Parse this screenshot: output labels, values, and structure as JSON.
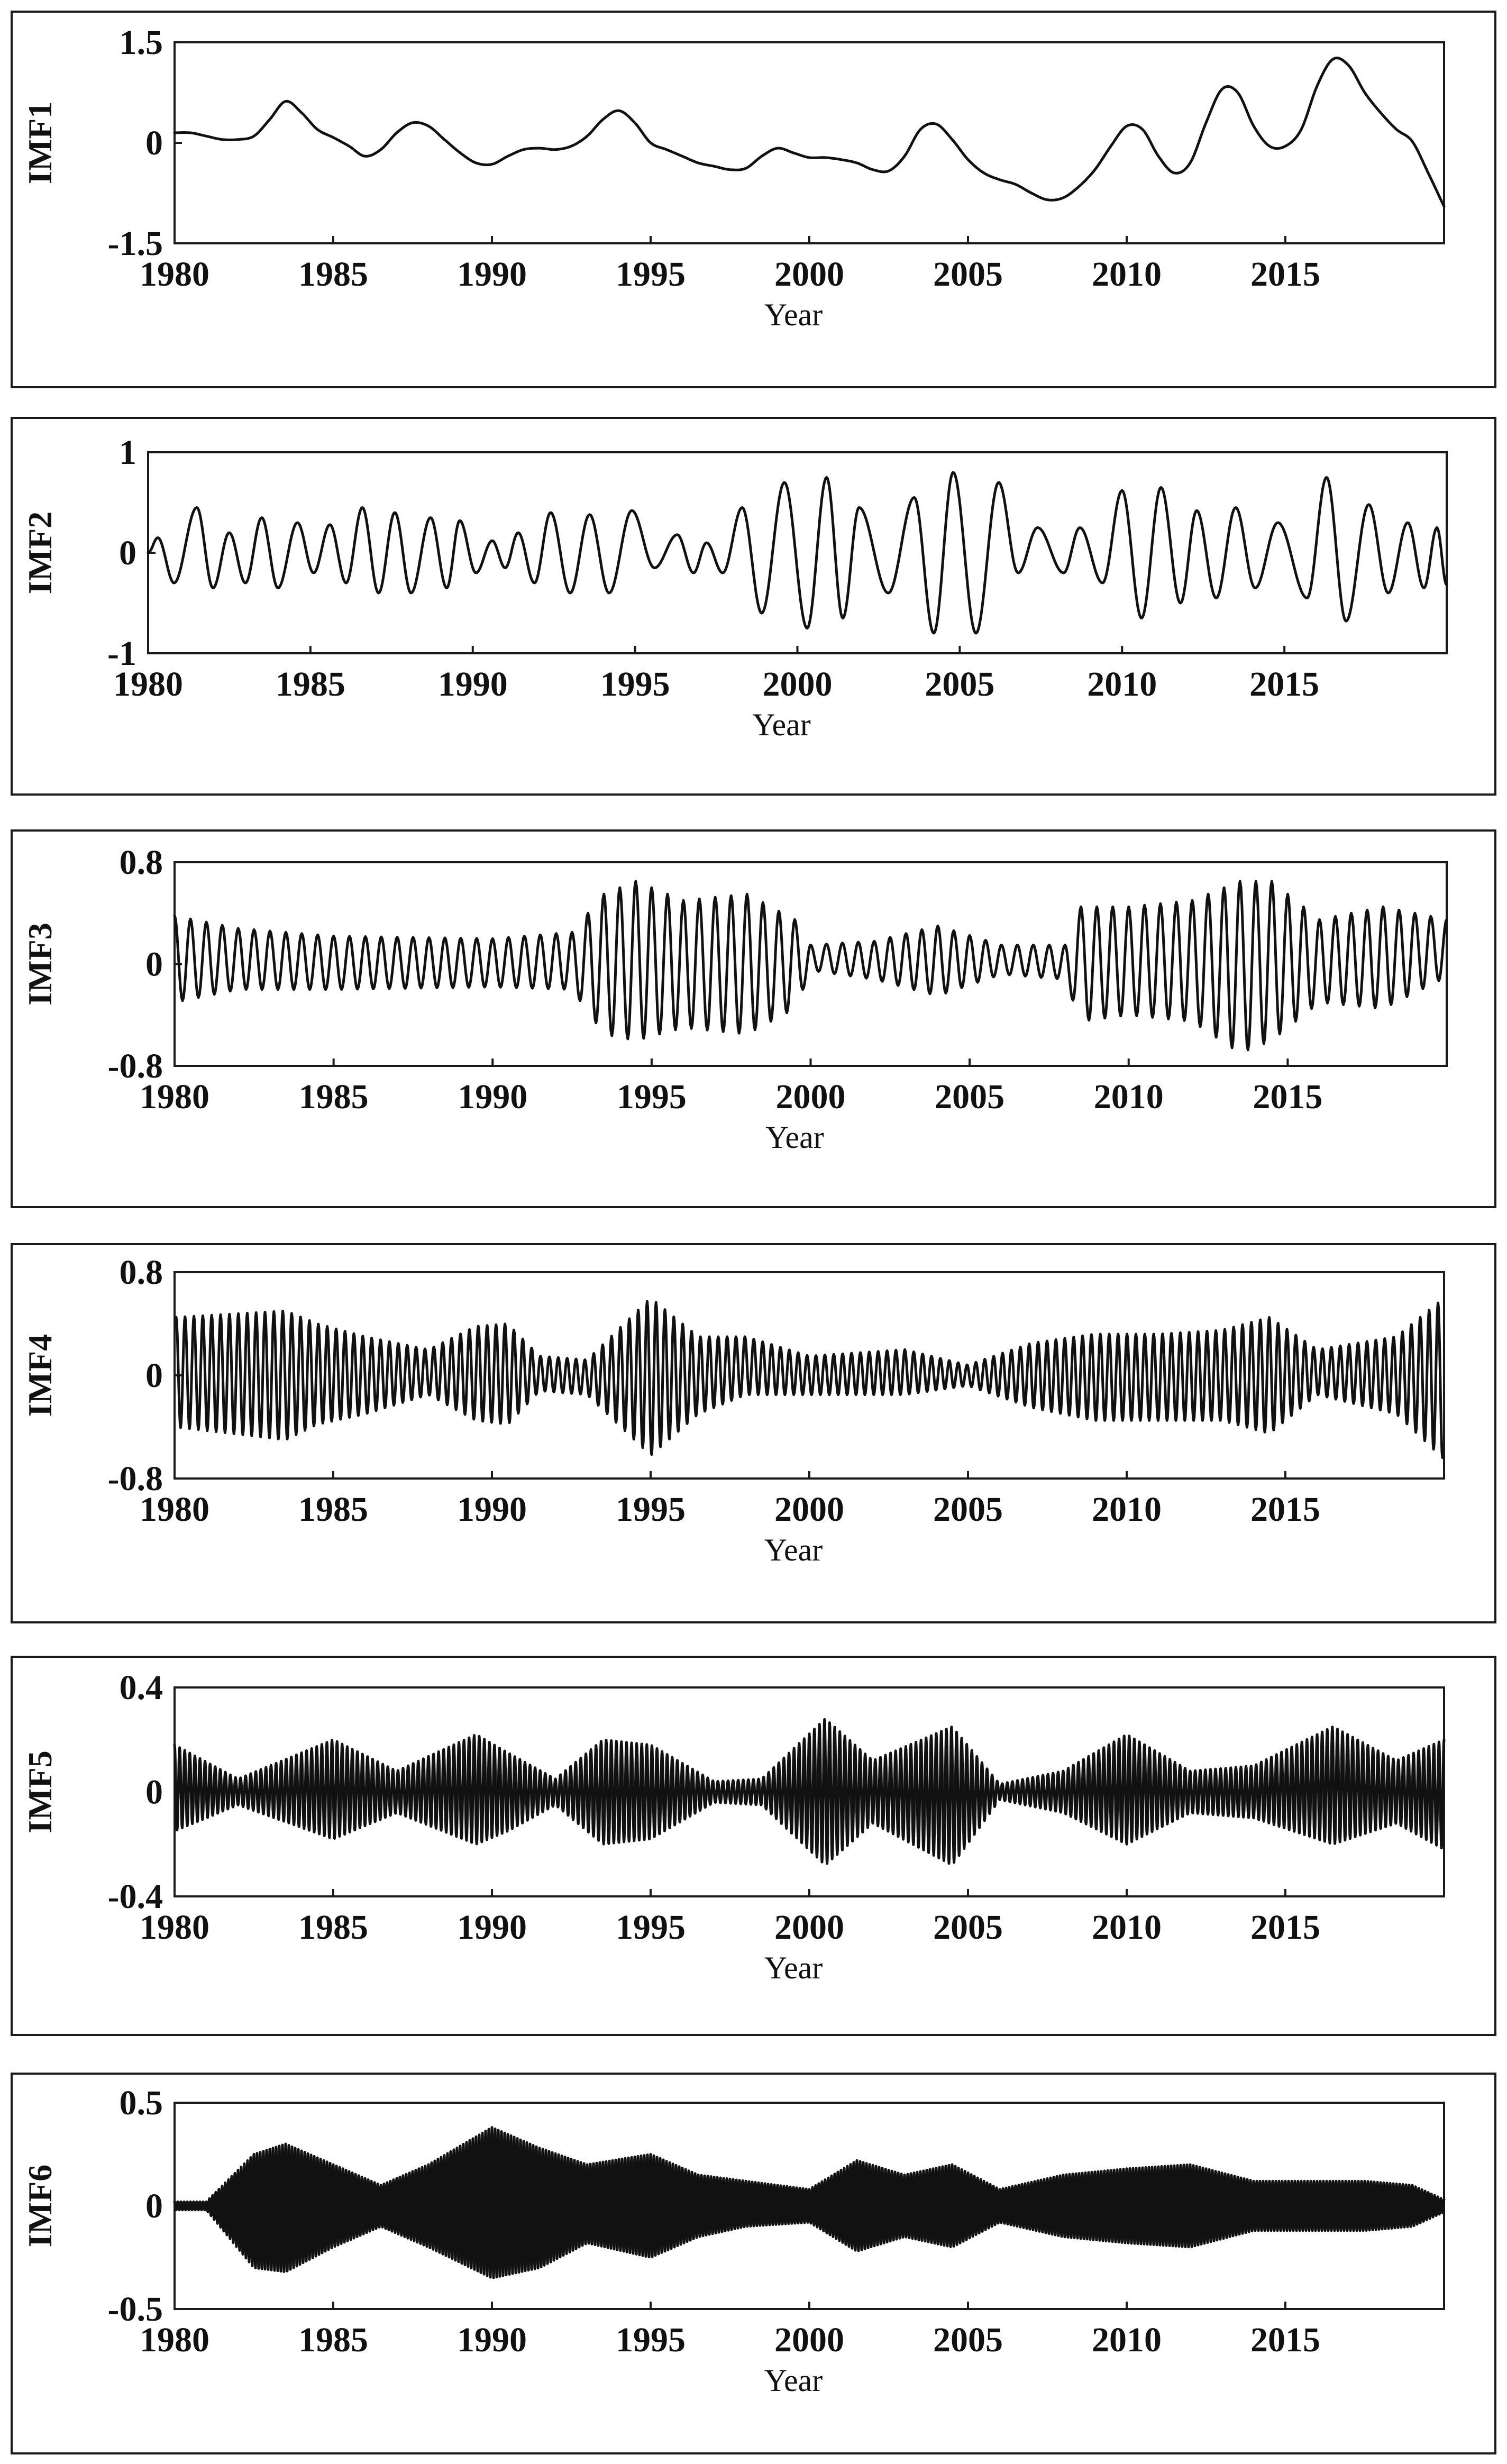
{
  "chart_data": [
    {
      "type": "line",
      "ylabel": "IMF1",
      "xlabel": "Year",
      "xlim": [
        1980,
        2020
      ],
      "ylim": [
        -1.5,
        1.5
      ],
      "yticks": [
        "1.5",
        "0",
        "-1.5"
      ],
      "xticks": [
        "1980",
        "1985",
        "1990",
        "1995",
        "2000",
        "2005",
        "2010",
        "2015"
      ],
      "x": [
        1980.0,
        1980.5,
        1981.0,
        1981.5,
        1982.0,
        1982.5,
        1983.0,
        1983.5,
        1984.0,
        1984.5,
        1985.0,
        1985.5,
        1986.0,
        1986.5,
        1987.0,
        1987.5,
        1988.0,
        1988.5,
        1989.0,
        1989.5,
        1990.0,
        1990.5,
        1991.0,
        1991.5,
        1992.0,
        1992.5,
        1993.0,
        1993.5,
        1994.0,
        1994.5,
        1995.0,
        1995.5,
        1996.0,
        1996.5,
        1997.0,
        1997.5,
        1998.0,
        1998.5,
        1999.0,
        1999.5,
        2000.0,
        2000.5,
        2001.0,
        2001.5,
        2002.0,
        2002.5,
        2003.0,
        2003.5,
        2004.0,
        2004.5,
        2005.0,
        2005.5,
        2006.0,
        2006.5,
        2007.0,
        2007.5,
        2008.0,
        2008.5,
        2009.0,
        2009.5,
        2010.0,
        2010.5,
        2011.0,
        2011.5,
        2012.0,
        2012.5,
        2013.0,
        2013.5,
        2014.0,
        2014.5,
        2015.0,
        2015.5,
        2016.0,
        2016.5,
        2017.0,
        2017.5,
        2018.0,
        2018.5,
        2019.0,
        2019.5,
        2020.0
      ],
      "y": [
        0.15,
        0.15,
        0.1,
        0.05,
        0.05,
        0.1,
        0.35,
        0.62,
        0.45,
        0.2,
        0.08,
        -0.05,
        -0.2,
        -0.1,
        0.15,
        0.3,
        0.25,
        0.05,
        -0.15,
        -0.3,
        -0.32,
        -0.2,
        -0.1,
        -0.08,
        -0.1,
        -0.05,
        0.1,
        0.35,
        0.48,
        0.3,
        0.0,
        -0.1,
        -0.2,
        -0.3,
        -0.35,
        -0.4,
        -0.38,
        -0.2,
        -0.08,
        -0.15,
        -0.22,
        -0.22,
        -0.25,
        -0.3,
        -0.4,
        -0.42,
        -0.2,
        0.2,
        0.28,
        0.05,
        -0.25,
        -0.45,
        -0.55,
        -0.62,
        -0.75,
        -0.85,
        -0.82,
        -0.65,
        -0.4,
        -0.05,
        0.25,
        0.2,
        -0.2,
        -0.45,
        -0.3,
        0.3,
        0.8,
        0.75,
        0.25,
        -0.05,
        -0.05,
        0.2,
        0.85,
        1.25,
        1.15,
        0.75,
        0.45,
        0.2,
        0.02,
        -0.45,
        -0.95
      ]
    },
    {
      "type": "line",
      "ylabel": "IMF2",
      "xlabel": "Year",
      "xlim": [
        1980,
        2020
      ],
      "ylim": [
        -1,
        1
      ],
      "yticks": [
        "1",
        "0",
        "-1"
      ],
      "xticks": [
        "1980",
        "1985",
        "1990",
        "1995",
        "2000",
        "2005",
        "2010",
        "2015"
      ],
      "peaks": [
        [
          1980.3,
          0.15
        ],
        [
          1981.5,
          0.45
        ],
        [
          1982.5,
          0.2
        ],
        [
          1983.5,
          0.35
        ],
        [
          1984.6,
          0.3
        ],
        [
          1985.6,
          0.28
        ],
        [
          1986.6,
          0.45
        ],
        [
          1987.6,
          0.4
        ],
        [
          1988.7,
          0.35
        ],
        [
          1989.6,
          0.32
        ],
        [
          1990.6,
          0.12
        ],
        [
          1991.4,
          0.2
        ],
        [
          1992.4,
          0.4
        ],
        [
          1993.6,
          0.38
        ],
        [
          1994.9,
          0.42
        ],
        [
          1996.3,
          0.18
        ],
        [
          1997.2,
          0.1
        ],
        [
          1998.3,
          0.45
        ],
        [
          1999.6,
          0.7
        ],
        [
          2000.9,
          0.75
        ],
        [
          2001.9,
          0.45
        ],
        [
          2003.6,
          0.55
        ],
        [
          2004.8,
          0.8
        ],
        [
          2006.2,
          0.7
        ],
        [
          2007.4,
          0.25
        ],
        [
          2008.7,
          0.25
        ],
        [
          2010.0,
          0.62
        ],
        [
          2011.2,
          0.65
        ],
        [
          2012.3,
          0.42
        ],
        [
          2013.5,
          0.45
        ],
        [
          2014.8,
          0.3
        ],
        [
          2016.3,
          0.75
        ],
        [
          2017.6,
          0.48
        ],
        [
          2018.8,
          0.3
        ],
        [
          2019.7,
          0.25
        ]
      ],
      "troughs": [
        [
          1980.8,
          -0.3
        ],
        [
          1982.0,
          -0.35
        ],
        [
          1983.0,
          -0.3
        ],
        [
          1984.0,
          -0.35
        ],
        [
          1985.1,
          -0.2
        ],
        [
          1986.1,
          -0.3
        ],
        [
          1987.1,
          -0.4
        ],
        [
          1988.1,
          -0.4
        ],
        [
          1989.2,
          -0.35
        ],
        [
          1990.1,
          -0.2
        ],
        [
          1991.0,
          -0.15
        ],
        [
          1991.9,
          -0.3
        ],
        [
          1993.0,
          -0.4
        ],
        [
          1994.2,
          -0.4
        ],
        [
          1995.6,
          -0.15
        ],
        [
          1996.8,
          -0.2
        ],
        [
          1997.7,
          -0.2
        ],
        [
          1998.9,
          -0.6
        ],
        [
          2000.3,
          -0.75
        ],
        [
          2001.4,
          -0.65
        ],
        [
          2002.8,
          -0.4
        ],
        [
          2004.2,
          -0.8
        ],
        [
          2005.5,
          -0.8
        ],
        [
          2006.8,
          -0.2
        ],
        [
          2008.2,
          -0.2
        ],
        [
          2009.4,
          -0.3
        ],
        [
          2010.6,
          -0.65
        ],
        [
          2011.8,
          -0.5
        ],
        [
          2012.9,
          -0.45
        ],
        [
          2014.1,
          -0.35
        ],
        [
          2015.7,
          -0.45
        ],
        [
          2016.9,
          -0.68
        ],
        [
          2018.2,
          -0.4
        ],
        [
          2019.3,
          -0.35
        ]
      ],
      "end": [
        2020.0,
        -0.32
      ]
    },
    {
      "type": "line",
      "ylabel": "IMF3",
      "xlabel": "Year",
      "xlim": [
        1980,
        2020
      ],
      "ylim": [
        -0.8,
        0.8
      ],
      "yticks": [
        "0.8",
        "0",
        "-0.8"
      ],
      "xticks": [
        "1980",
        "1985",
        "1990",
        "1995",
        "2000",
        "2005",
        "2010",
        "2015"
      ],
      "period": 0.5,
      "phase": 1980.0,
      "env_x": [
        1980,
        1982,
        1985,
        1990,
        1992.5,
        1993.5,
        1994.5,
        1996,
        1998,
        1999.5,
        2000,
        2002,
        2004,
        2006,
        2008,
        2008.5,
        2010,
        2012,
        2013.5,
        2014.5,
        2016,
        2018,
        2020
      ],
      "env_a": [
        0.38,
        0.28,
        0.22,
        0.2,
        0.25,
        0.55,
        0.65,
        0.5,
        0.55,
        0.35,
        0.15,
        0.18,
        0.3,
        0.15,
        0.15,
        0.45,
        0.45,
        0.5,
        0.65,
        0.65,
        0.35,
        0.45,
        0.35
      ],
      "env_b": [
        0.3,
        0.2,
        0.2,
        0.18,
        0.2,
        0.55,
        0.6,
        0.5,
        0.55,
        0.35,
        0.05,
        0.12,
        0.25,
        0.08,
        0.12,
        0.45,
        0.4,
        0.45,
        0.7,
        0.6,
        0.3,
        0.35,
        0.1
      ]
    },
    {
      "type": "line",
      "ylabel": "IMF4",
      "xlabel": "Year",
      "xlim": [
        1980,
        2020
      ],
      "ylim": [
        -0.8,
        0.8
      ],
      "yticks": [
        "0.8",
        "0",
        "-0.8"
      ],
      "xticks": [
        "1980",
        "1985",
        "1990",
        "1995",
        "2000",
        "2005",
        "2010",
        "2015"
      ],
      "period": 0.28,
      "phase": 1980.05,
      "env_x": [
        1980,
        1983.5,
        1984.5,
        1986,
        1988,
        1989.5,
        1990.5,
        1991.5,
        1993,
        1995,
        1996.5,
        1998,
        2000,
        2003,
        2005,
        2007,
        2009,
        2011,
        2013,
        2014.5,
        2016,
        2018.5,
        2020
      ],
      "env_a": [
        0.45,
        0.5,
        0.4,
        0.3,
        0.2,
        0.38,
        0.4,
        0.15,
        0.12,
        0.6,
        0.3,
        0.3,
        0.15,
        0.2,
        0.08,
        0.25,
        0.32,
        0.32,
        0.35,
        0.45,
        0.2,
        0.3,
        0.6
      ],
      "env_b": [
        0.4,
        0.5,
        0.38,
        0.3,
        0.15,
        0.35,
        0.38,
        0.12,
        0.15,
        0.62,
        0.3,
        0.15,
        0.15,
        0.15,
        0.08,
        0.25,
        0.35,
        0.35,
        0.35,
        0.45,
        0.15,
        0.3,
        0.65
      ]
    },
    {
      "type": "line",
      "ylabel": "IMF5",
      "xlabel": "Year",
      "xlim": [
        1980,
        2020
      ],
      "ylim": [
        -0.4,
        0.4
      ],
      "yticks": [
        "0.4",
        "0",
        "-0.4"
      ],
      "xticks": [
        "1980",
        "1985",
        "1990",
        "1995",
        "2000",
        "2005",
        "2010",
        "2015"
      ],
      "period": 0.16,
      "phase": 1980.0,
      "env_x": [
        1980,
        1982,
        1985,
        1987,
        1989.5,
        1990.5,
        1992,
        1993.5,
        1995,
        1997,
        1998.5,
        2000.5,
        2002,
        2004.5,
        2006,
        2008,
        2010,
        2012,
        2014,
        2016.5,
        2018.5,
        2020
      ],
      "env_a": [
        0.18,
        0.05,
        0.2,
        0.08,
        0.22,
        0.15,
        0.05,
        0.2,
        0.18,
        0.04,
        0.05,
        0.28,
        0.12,
        0.25,
        0.03,
        0.08,
        0.22,
        0.08,
        0.1,
        0.25,
        0.12,
        0.2
      ],
      "env_b": [
        0.15,
        0.05,
        0.18,
        0.08,
        0.2,
        0.15,
        0.05,
        0.2,
        0.18,
        0.04,
        0.05,
        0.28,
        0.12,
        0.28,
        0.03,
        0.08,
        0.2,
        0.08,
        0.1,
        0.2,
        0.12,
        0.22
      ]
    },
    {
      "type": "line",
      "ylabel": "IMF6",
      "xlabel": "Year",
      "xlim": [
        1980,
        2020
      ],
      "ylim": [
        -0.5,
        0.5
      ],
      "yticks": [
        "0.5",
        "0",
        "-0.5"
      ],
      "xticks": [
        "1980",
        "1985",
        "1990",
        "1995",
        "2000",
        "2005",
        "2010",
        "2015"
      ],
      "period": 0.1,
      "phase": 1980.0,
      "env_x": [
        1980,
        1981,
        1982.5,
        1983.5,
        1985,
        1986.5,
        1988,
        1990,
        1991.5,
        1993,
        1995,
        1996.5,
        1998,
        2000,
        2001.5,
        2003,
        2004.5,
        2006,
        2008,
        2010,
        2012,
        2014,
        2016,
        2017.5,
        2019,
        2020
      ],
      "env_a": [
        0.02,
        0.02,
        0.25,
        0.3,
        0.2,
        0.1,
        0.2,
        0.38,
        0.28,
        0.2,
        0.25,
        0.15,
        0.12,
        0.08,
        0.22,
        0.15,
        0.2,
        0.08,
        0.15,
        0.18,
        0.2,
        0.12,
        0.12,
        0.12,
        0.1,
        0.03
      ],
      "env_b": [
        0.02,
        0.02,
        0.3,
        0.32,
        0.2,
        0.1,
        0.2,
        0.35,
        0.3,
        0.18,
        0.25,
        0.15,
        0.1,
        0.08,
        0.22,
        0.15,
        0.2,
        0.08,
        0.15,
        0.18,
        0.2,
        0.12,
        0.12,
        0.12,
        0.1,
        0.03
      ]
    }
  ]
}
